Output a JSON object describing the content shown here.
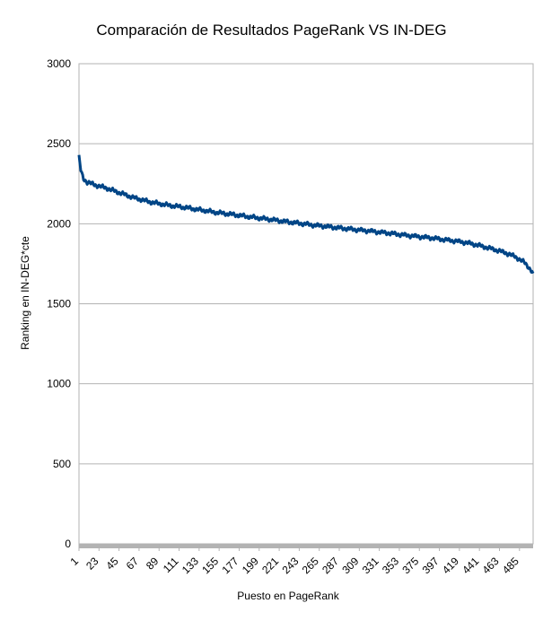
{
  "chart_data": {
    "type": "line",
    "title": "Comparación de Resultados PageRank VS IN-DEG",
    "xlabel": "Puesto en PageRank",
    "ylabel": "Ranking en IN-DEG*cte",
    "xlim": [
      1,
      500
    ],
    "ylim": [
      0,
      3000
    ],
    "yticks": [
      0,
      500,
      1000,
      1500,
      2000,
      2500,
      3000
    ],
    "x_tick_labels": [
      "1",
      "23",
      "45",
      "67",
      "89",
      "111",
      "133",
      "155",
      "177",
      "199",
      "221",
      "243",
      "265",
      "287",
      "309",
      "331",
      "353",
      "375",
      "397",
      "419",
      "441",
      "463",
      "485"
    ],
    "grid": true,
    "legend": "none",
    "series": [
      {
        "color": "#004586",
        "x": [
          1,
          3,
          6,
          10,
          20,
          30,
          40,
          50,
          60,
          70,
          80,
          90,
          100,
          110,
          120,
          130,
          140,
          150,
          160,
          170,
          180,
          190,
          200,
          210,
          220,
          230,
          240,
          250,
          260,
          270,
          280,
          290,
          300,
          310,
          320,
          330,
          340,
          350,
          360,
          370,
          380,
          390,
          400,
          410,
          420,
          430,
          440,
          450,
          460,
          470,
          480,
          490,
          495,
          500
        ],
        "values": [
          2430,
          2330,
          2280,
          2260,
          2240,
          2225,
          2205,
          2185,
          2165,
          2150,
          2135,
          2125,
          2115,
          2108,
          2100,
          2090,
          2082,
          2072,
          2065,
          2058,
          2050,
          2042,
          2035,
          2028,
          2020,
          2012,
          2005,
          1998,
          1990,
          1985,
          1978,
          1972,
          1966,
          1960,
          1955,
          1948,
          1942,
          1935,
          1928,
          1922,
          1916,
          1910,
          1902,
          1895,
          1888,
          1878,
          1865,
          1850,
          1835,
          1818,
          1795,
          1760,
          1730,
          1690
        ]
      }
    ]
  }
}
